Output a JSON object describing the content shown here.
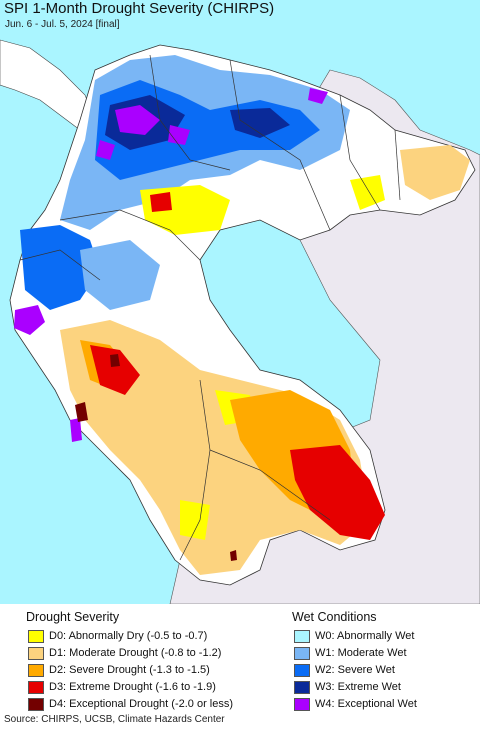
{
  "title": "SPI 1-Month Drought Severity (CHIRPS)",
  "subtitle": "Jun. 6 - Jul. 5, 2024 [final]",
  "legend": {
    "drought_title": "Drought Severity",
    "wet_title": "Wet Conditions",
    "drought": [
      {
        "label": "D0: Abnormally Dry (-0.5 to -0.7)",
        "color": "#ffff00"
      },
      {
        "label": "D1: Moderate Drought (-0.8 to -1.2)",
        "color": "#fcd37f"
      },
      {
        "label": "D2: Severe Drought (-1.3 to -1.5)",
        "color": "#ffaa00"
      },
      {
        "label": "D3: Extreme Drought (-1.6 to -1.9)",
        "color": "#e60000"
      },
      {
        "label": "D4: Exceptional Drought (-2.0 or less)",
        "color": "#730000"
      }
    ],
    "wet": [
      {
        "label": "W0: Abnormally Wet",
        "color": "#aaf5ff"
      },
      {
        "label": "W1: Moderate Wet",
        "color": "#7ab6f5"
      },
      {
        "label": "W2: Severe Wet",
        "color": "#0a6cf5"
      },
      {
        "label": "W3: Extreme Wet",
        "color": "#0a2a99"
      },
      {
        "label": "W4: Exceptional Wet",
        "color": "#aa00ff"
      }
    ]
  },
  "source": "Source: CHIRPS, UCSB, Climate Hazards Center",
  "colors": {
    "ocean": "#aaf5ff",
    "land_outside": "#ece8f0",
    "land_normal": "#ffffff",
    "borders": "#333333"
  }
}
